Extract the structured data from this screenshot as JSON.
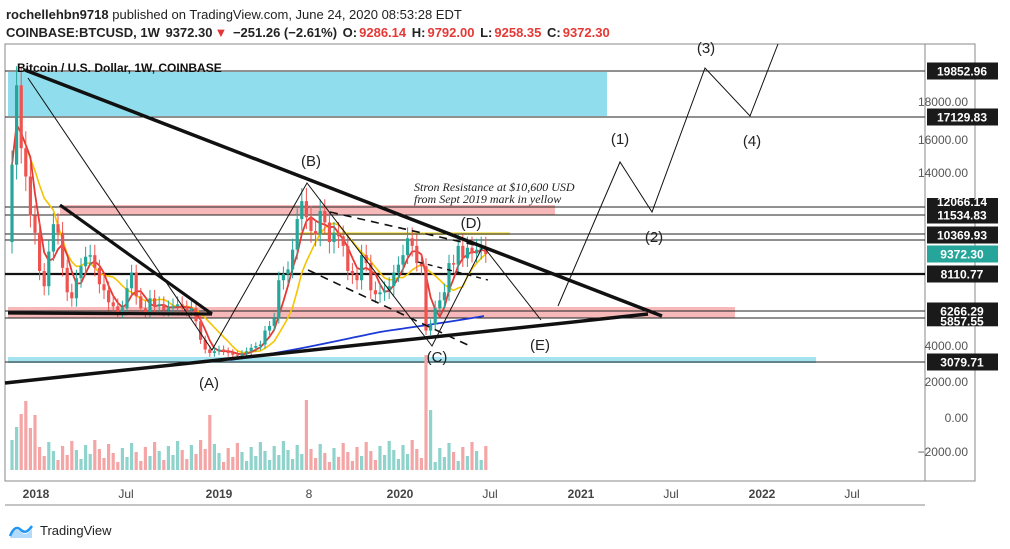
{
  "header": {
    "publisher": "rochellehbn9718",
    "published_line": "published on TradingView.com, June 24, 2020 08:53:28 EDT",
    "symbol": "COINBASE:BTCUSD, 1W",
    "last": "9372.30",
    "change": "−251.26 (−2.61%)",
    "open_label": "O:",
    "open": "9286.14",
    "high_label": "H:",
    "high": "9792.00",
    "low_label": "L:",
    "low": "9258.35",
    "close_label": "C:",
    "close": "9372.30"
  },
  "brand": {
    "name": "TradingView",
    "icon": "tradingview-logo-icon"
  },
  "colors": {
    "up": "#26a69a",
    "down": "#ef5350",
    "sma_red": "#e53935",
    "sma_yellow": "#f5c400",
    "sma_blue": "#1e3ad6",
    "cyan_zone": "#7dd8ea",
    "pink_zone": "#f4a6a6",
    "trend": "#111111"
  },
  "chart_data": {
    "type": "candlestick",
    "title": "Bitcoin / U.S. Dollar, 1W, COINBASE",
    "x_ticks": [
      "2018",
      "Jul",
      "2019",
      "8",
      "2020",
      "Jul",
      "2021",
      "Jul",
      "2022",
      "Jul"
    ],
    "y_ticks": [
      "18000.00",
      "16000.00",
      "14000.00",
      "4000.00",
      "2000.00",
      "0.00",
      "−2000.00"
    ],
    "y_scale": "custom-broken",
    "price_labels": [
      {
        "label": "19852.96",
        "value": 19852.96,
        "style": "dark"
      },
      {
        "label": "17129.83",
        "value": 17129.83,
        "style": "dark"
      },
      {
        "label": "12066.14",
        "value": 12066.14,
        "style": "dark",
        "partial": true
      },
      {
        "label": "11534.83",
        "value": 11534.83,
        "style": "dark"
      },
      {
        "label": "10369.93",
        "value": 10369.93,
        "style": "dark"
      },
      {
        "label": "9372.30",
        "value": 9372.3,
        "style": "green"
      },
      {
        "label": "8110.77",
        "value": 8110.77,
        "style": "dark"
      },
      {
        "label": "6266.29",
        "value": 6266.29,
        "style": "dark"
      },
      {
        "label": "5857.55",
        "value": 5857.55,
        "style": "dark",
        "partial": true
      },
      {
        "label": "3079.71",
        "value": 3079.71,
        "style": "dark"
      }
    ],
    "wave_labels": [
      "(A)",
      "(B)",
      "(C)",
      "(D)",
      "(E)",
      "(1)",
      "(2)",
      "(3)",
      "(4)"
    ],
    "annotation": [
      "Stron Resistance at $10,600 USD",
      "from Sept 2019 mark in yellow"
    ],
    "series_weekly_close": [
      14500,
      19000,
      15500,
      13800,
      11500,
      10500,
      8300,
      7500,
      9500,
      11000,
      10500,
      8500,
      7200,
      6900,
      7900,
      8600,
      9200,
      9300,
      8500,
      7600,
      7300,
      6700,
      6500,
      6200,
      6400,
      7400,
      8200,
      7000,
      6400,
      6200,
      6900,
      6500,
      6600,
      6300,
      6400,
      6500,
      6600,
      6400,
      6300,
      6400,
      5600,
      4400,
      3800,
      3600,
      3700,
      3800,
      3700,
      3600,
      3500,
      3450,
      3550,
      3700,
      3900,
      4000,
      4100,
      5000,
      5300,
      5800,
      7800,
      8100,
      8400,
      9600,
      11300,
      12400,
      11400,
      10600,
      10400,
      11800,
      11100,
      10000,
      10500,
      10300,
      9800,
      8300,
      8100,
      7800,
      9300,
      8800,
      7300,
      7100,
      7200,
      7300,
      7500,
      8200,
      8700,
      9300,
      10200,
      9800,
      8800,
      8600,
      5000,
      5400,
      6400,
      6800,
      7200,
      8800,
      8700,
      9800,
      9100,
      9700,
      9400,
      9600,
      9700,
      9372
    ]
  }
}
